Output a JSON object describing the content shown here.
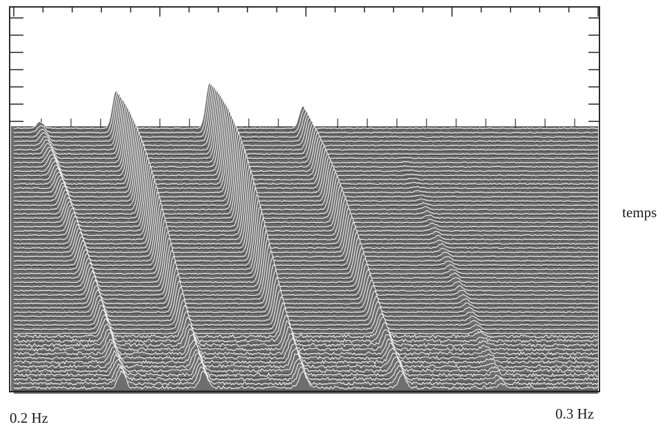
{
  "chart_data": {
    "type": "waterfall",
    "xlabel_left": "0.2 Hz",
    "xlabel_right": "0.3 Hz",
    "ylabel": "temps",
    "xlim": [
      0.2,
      0.3
    ],
    "x_unit": "Hz",
    "traces": 62,
    "background_color": "#6e6e6e",
    "trace_color": "#f2f2f2",
    "peak_tracks": [
      {
        "freq_start": 0.2045,
        "freq_end": 0.2185,
        "peak_max": 0.25,
        "peak_min": 0.6
      },
      {
        "freq_start": 0.2175,
        "freq_end": 0.2325,
        "peak_max": 1.45,
        "peak_min": 0.6
      },
      {
        "freq_start": 0.2335,
        "freq_end": 0.2495,
        "peak_max": 1.75,
        "peak_min": 0.6
      },
      {
        "freq_start": 0.2495,
        "freq_end": 0.2665,
        "peak_max": 0.85,
        "peak_min": 0.5
      },
      {
        "freq_start": 0.2645,
        "freq_end": 0.2835,
        "peak_max": 0.0,
        "peak_min": 0.15
      }
    ]
  }
}
